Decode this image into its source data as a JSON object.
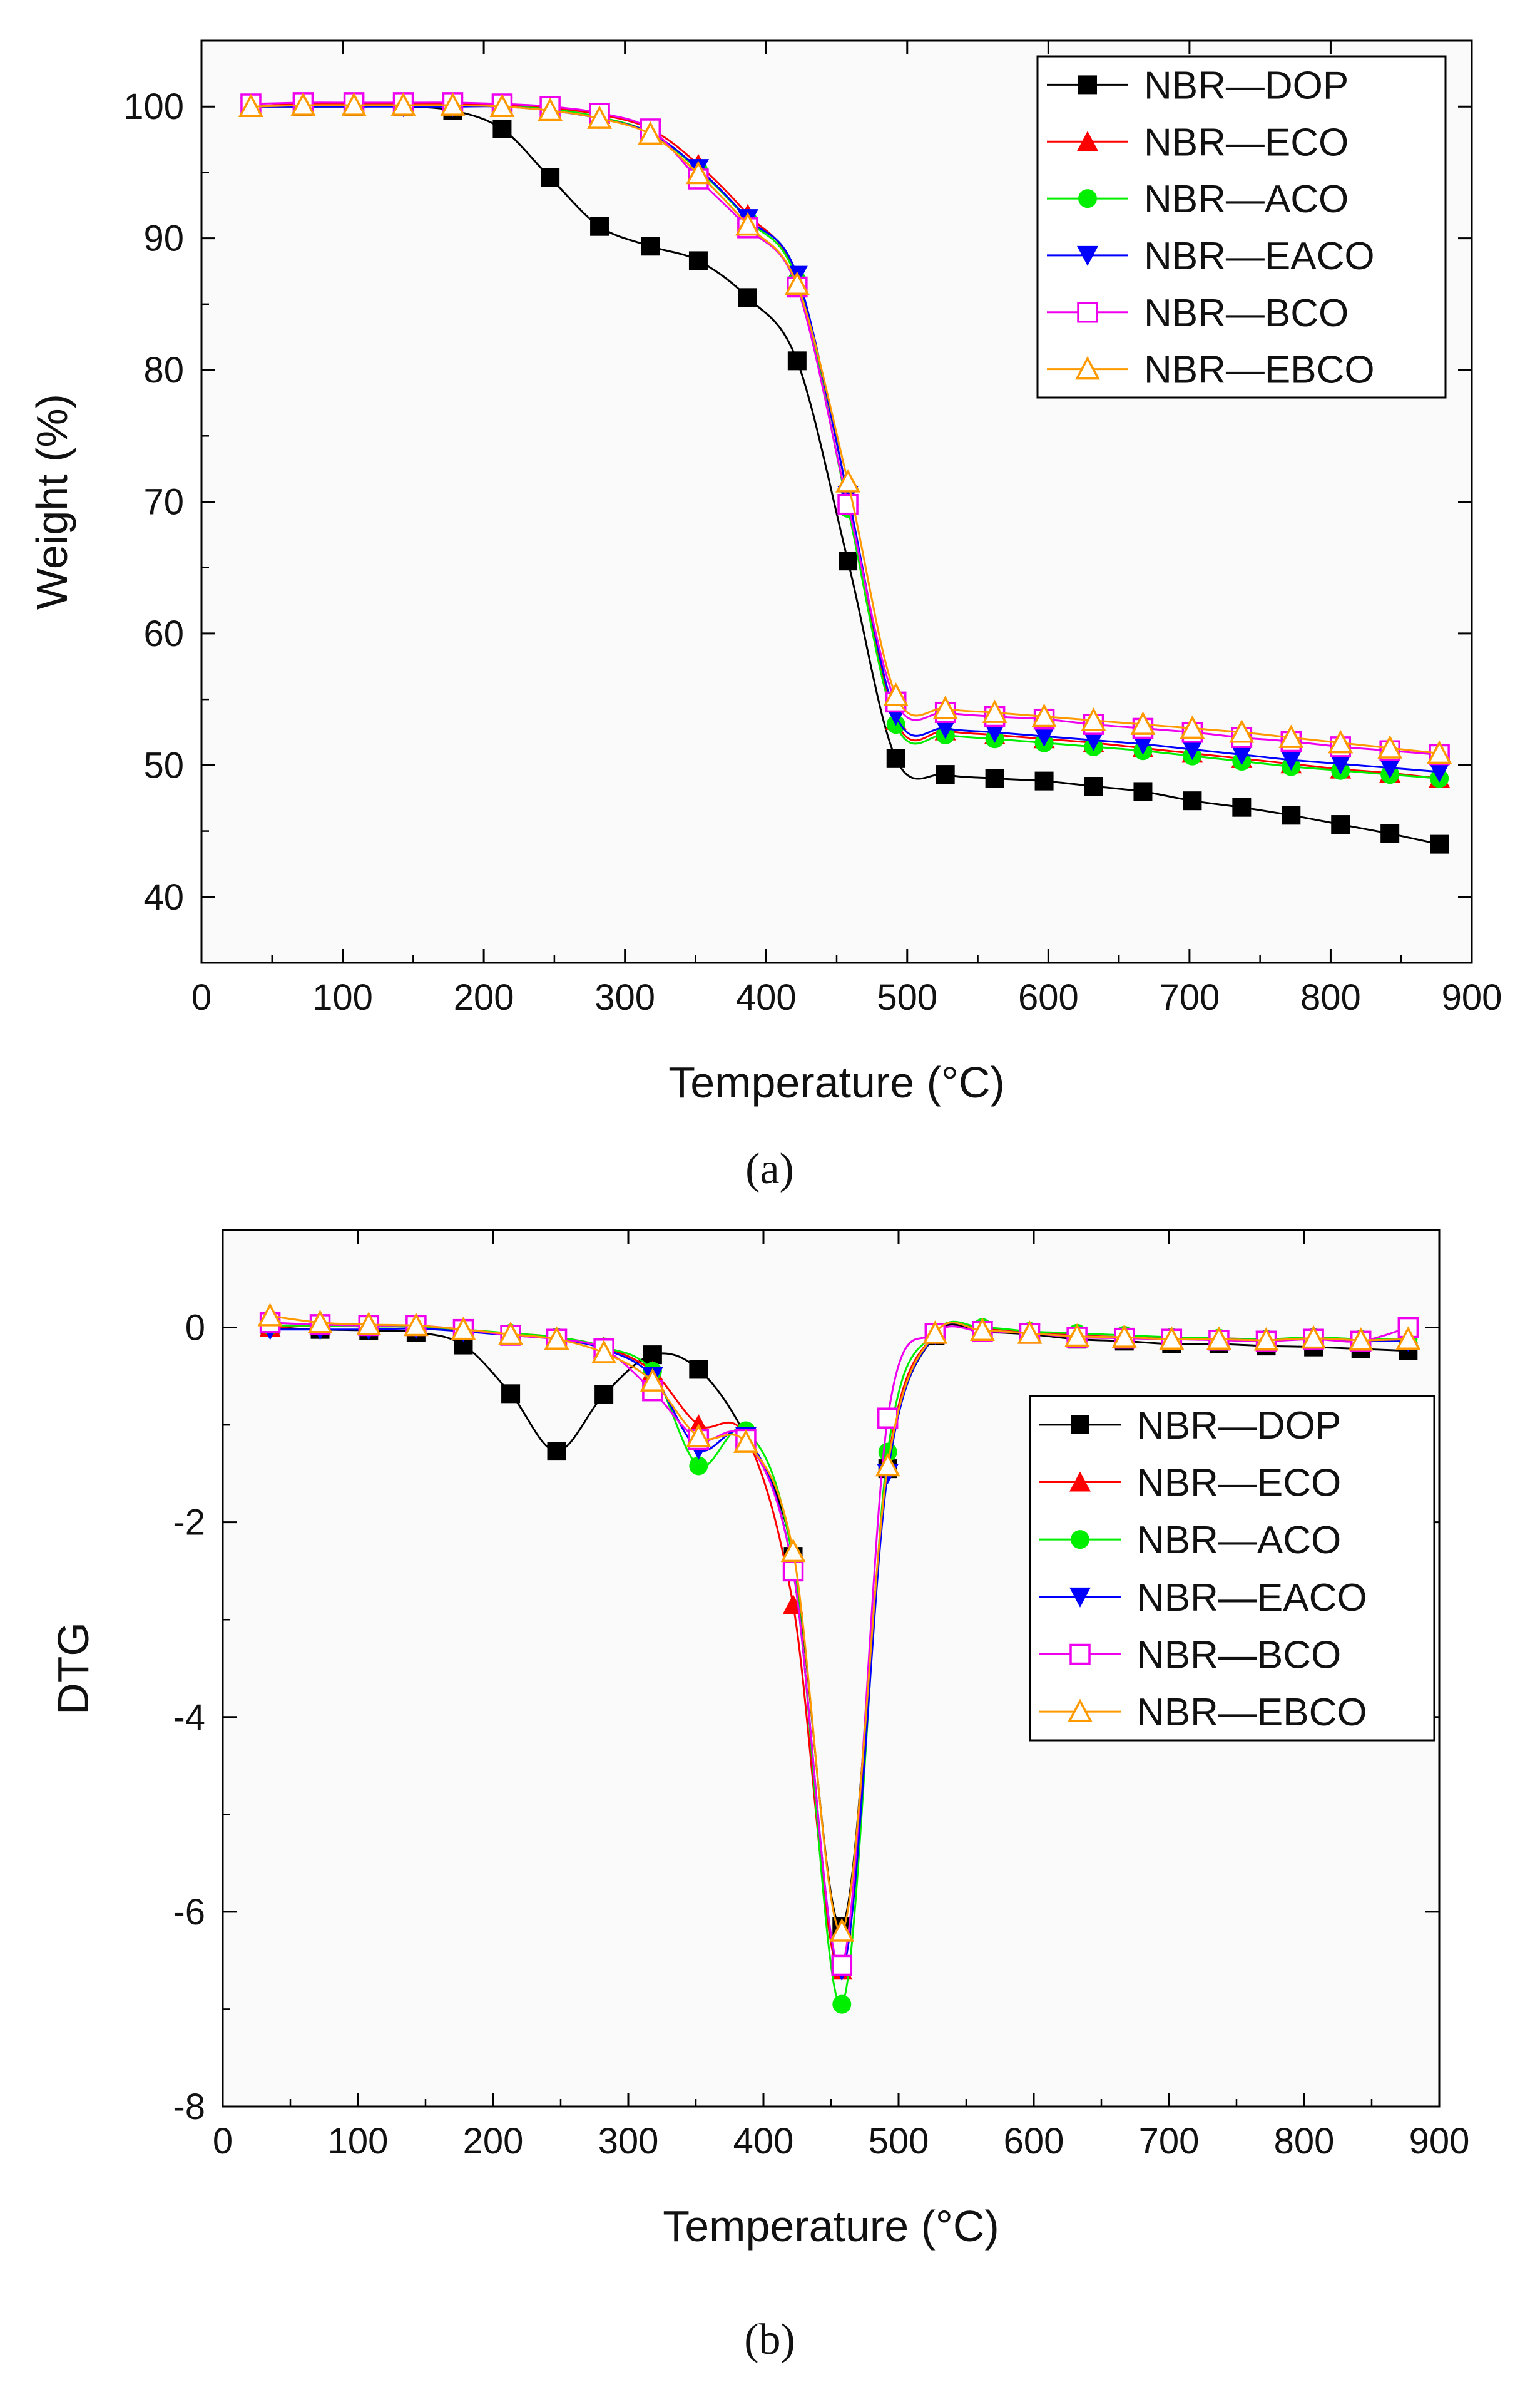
{
  "chart_data": [
    {
      "panel": "a",
      "type": "line",
      "caption": "(a)",
      "xlabel": "Temperature (°C)",
      "ylabel": "Weight (%)",
      "xlim": [
        0,
        900
      ],
      "ylim": [
        35,
        105
      ],
      "xticks": [
        0,
        100,
        200,
        300,
        400,
        500,
        600,
        700,
        800,
        900
      ],
      "yticks": [
        40,
        50,
        60,
        70,
        80,
        90,
        100
      ],
      "grid": false,
      "legend_position": "top-right",
      "series": [
        {
          "name": "NBR—DOP",
          "color": "#000000",
          "marker": "square-filled",
          "x": [
            35,
            72,
            108,
            143,
            178,
            213,
            247,
            282,
            318,
            352,
            387,
            422,
            458,
            492,
            527,
            562,
            597,
            632,
            667,
            702,
            737,
            772,
            807,
            842,
            877
          ],
          "y": [
            100,
            100,
            100,
            100,
            99.7,
            98.3,
            94.6,
            90.9,
            89.4,
            88.3,
            85.5,
            80.7,
            65.5,
            50.5,
            49.3,
            49.0,
            48.8,
            48.4,
            48.0,
            47.3,
            46.8,
            46.2,
            45.5,
            44.8,
            44.0
          ]
        },
        {
          "name": "NBR—ECO",
          "color": "#ff0000",
          "marker": "triangle-up-filled",
          "x": [
            35,
            72,
            108,
            143,
            178,
            213,
            247,
            282,
            318,
            352,
            387,
            422,
            458,
            492,
            527,
            562,
            597,
            632,
            667,
            702,
            737,
            772,
            807,
            842,
            877
          ],
          "y": [
            100,
            100.2,
            100.2,
            100.2,
            100.2,
            100.1,
            99.9,
            99.4,
            98.3,
            95.6,
            91.8,
            87.0,
            70.5,
            53.4,
            52.6,
            52.3,
            52.0,
            51.7,
            51.3,
            50.9,
            50.5,
            50.1,
            49.7,
            49.4,
            49.0
          ]
        },
        {
          "name": "NBR—ACO",
          "color": "#00ee00",
          "marker": "circle-filled",
          "x": [
            35,
            72,
            108,
            143,
            178,
            213,
            247,
            282,
            318,
            352,
            387,
            422,
            458,
            492,
            527,
            562,
            597,
            632,
            667,
            702,
            737,
            772,
            807,
            842,
            877
          ],
          "y": [
            100,
            100.1,
            100.1,
            100.1,
            100.1,
            100.0,
            99.8,
            99.2,
            98.0,
            95.2,
            91.4,
            86.8,
            69.5,
            53.1,
            52.3,
            52.0,
            51.7,
            51.4,
            51.1,
            50.7,
            50.3,
            49.9,
            49.6,
            49.3,
            49.0
          ]
        },
        {
          "name": "NBR—EACO",
          "color": "#0000ff",
          "marker": "triangle-down-filled",
          "x": [
            35,
            72,
            108,
            143,
            178,
            213,
            247,
            282,
            318,
            352,
            387,
            422,
            458,
            492,
            527,
            562,
            597,
            632,
            667,
            702,
            737,
            772,
            807,
            842,
            877
          ],
          "y": [
            100,
            100,
            100,
            100,
            100,
            100,
            99.7,
            99.1,
            98.0,
            95.3,
            91.5,
            87.2,
            70.5,
            53.8,
            52.8,
            52.5,
            52.2,
            51.9,
            51.6,
            51.2,
            50.8,
            50.4,
            50.1,
            49.8,
            49.5
          ]
        },
        {
          "name": "NBR—BCO",
          "color": "#ee00ee",
          "marker": "square-open",
          "x": [
            35,
            72,
            108,
            143,
            178,
            213,
            247,
            282,
            318,
            352,
            387,
            422,
            458,
            492,
            527,
            562,
            597,
            632,
            667,
            702,
            737,
            772,
            807,
            842,
            877
          ],
          "y": [
            100.2,
            100.3,
            100.3,
            100.3,
            100.3,
            100.2,
            100.0,
            99.5,
            98.3,
            94.5,
            90.8,
            86.3,
            69.8,
            54.8,
            54.0,
            53.7,
            53.5,
            53.1,
            52.8,
            52.5,
            52.1,
            51.8,
            51.4,
            51.1,
            50.8
          ]
        },
        {
          "name": "NBR—EBCO",
          "color": "#ff9900",
          "marker": "triangle-up-open",
          "x": [
            35,
            72,
            108,
            143,
            178,
            213,
            247,
            282,
            318,
            352,
            387,
            422,
            458,
            492,
            527,
            562,
            597,
            632,
            667,
            702,
            737,
            772,
            807,
            842,
            877
          ],
          "y": [
            100,
            100.1,
            100.1,
            100.1,
            100.1,
            100.0,
            99.7,
            99.1,
            97.9,
            94.9,
            91.0,
            86.5,
            71.5,
            55.3,
            54.3,
            54.0,
            53.7,
            53.4,
            53.1,
            52.8,
            52.5,
            52.1,
            51.7,
            51.3,
            50.9
          ]
        }
      ]
    },
    {
      "panel": "b",
      "type": "line",
      "caption": "(b)",
      "xlabel": "Temperature (°C)",
      "ylabel": "DTG",
      "xlim": [
        0,
        900
      ],
      "ylim": [
        -8,
        1
      ],
      "xticks": [
        0,
        100,
        200,
        300,
        400,
        500,
        600,
        700,
        800,
        900
      ],
      "yticks": [
        -8,
        -6,
        -4,
        -2,
        0
      ],
      "grid": false,
      "legend_position": "right-middle",
      "series": [
        {
          "name": "NBR—DOP",
          "color": "#000000",
          "marker": "square-filled",
          "x": [
            35,
            72,
            108,
            143,
            178,
            213,
            247,
            282,
            318,
            352,
            387,
            422,
            458,
            492,
            527,
            562,
            597,
            632,
            667,
            702,
            737,
            772,
            807,
            842,
            877
          ],
          "y": [
            0,
            -0.02,
            -0.03,
            -0.05,
            -0.18,
            -0.68,
            -1.27,
            -0.69,
            -0.28,
            -0.43,
            -1.12,
            -2.35,
            -6.15,
            -1.45,
            -0.08,
            -0.05,
            -0.07,
            -0.12,
            -0.14,
            -0.17,
            -0.17,
            -0.19,
            -0.2,
            -0.22,
            -0.24
          ]
        },
        {
          "name": "NBR—ECO",
          "color": "#ff0000",
          "marker": "triangle-up-filled",
          "x": [
            35,
            72,
            108,
            143,
            178,
            213,
            247,
            282,
            318,
            352,
            387,
            422,
            458,
            492,
            527,
            562,
            597,
            632,
            667,
            702,
            737,
            772,
            807,
            842,
            877
          ],
          "y": [
            0,
            0.02,
            0.01,
            0.01,
            -0.03,
            -0.06,
            -0.1,
            -0.2,
            -0.45,
            -1.0,
            -1.12,
            -2.85,
            -6.6,
            -1.4,
            -0.06,
            -0.02,
            -0.05,
            -0.08,
            -0.1,
            -0.11,
            -0.11,
            -0.12,
            -0.11,
            -0.13,
            -0.13
          ]
        },
        {
          "name": "NBR—ACO",
          "color": "#00ee00",
          "marker": "circle-filled",
          "x": [
            35,
            72,
            108,
            143,
            178,
            213,
            247,
            282,
            318,
            352,
            387,
            422,
            458,
            492,
            527,
            562,
            597,
            632,
            667,
            702,
            737,
            772,
            807,
            842,
            877
          ],
          "y": [
            0.02,
            0.02,
            0.01,
            0.01,
            -0.02,
            -0.06,
            -0.1,
            -0.2,
            -0.45,
            -1.42,
            -1.06,
            -2.4,
            -6.95,
            -1.28,
            -0.05,
            0.0,
            -0.04,
            -0.06,
            -0.08,
            -0.1,
            -0.11,
            -0.12,
            -0.1,
            -0.12,
            -0.12
          ]
        },
        {
          "name": "NBR—EACO",
          "color": "#0000ff",
          "marker": "triangle-down-filled",
          "x": [
            35,
            72,
            108,
            143,
            178,
            213,
            247,
            282,
            318,
            352,
            387,
            422,
            458,
            492,
            527,
            562,
            597,
            632,
            667,
            702,
            737,
            772,
            807,
            842,
            877
          ],
          "y": [
            -0.02,
            -0.02,
            -0.02,
            -0.01,
            -0.04,
            -0.08,
            -0.12,
            -0.22,
            -0.5,
            -1.25,
            -1.12,
            -2.5,
            -6.6,
            -1.5,
            -0.07,
            -0.03,
            -0.06,
            -0.09,
            -0.1,
            -0.12,
            -0.12,
            -0.13,
            -0.12,
            -0.14,
            -0.14
          ]
        },
        {
          "name": "NBR—BCO",
          "color": "#ee00ee",
          "marker": "square-open",
          "x": [
            35,
            72,
            108,
            143,
            178,
            213,
            247,
            282,
            318,
            352,
            387,
            422,
            458,
            492,
            527,
            562,
            597,
            632,
            667,
            702,
            737,
            772,
            807,
            842,
            877
          ],
          "y": [
            0.05,
            0.03,
            0.02,
            0.02,
            -0.02,
            -0.08,
            -0.12,
            -0.22,
            -0.65,
            -1.15,
            -1.15,
            -2.5,
            -6.55,
            -0.93,
            -0.06,
            -0.04,
            -0.06,
            -0.1,
            -0.11,
            -0.12,
            -0.13,
            -0.14,
            -0.12,
            -0.14,
            0.0
          ]
        },
        {
          "name": "NBR—EBCO",
          "color": "#ff9900",
          "marker": "triangle-up-open",
          "x": [
            35,
            72,
            108,
            143,
            178,
            213,
            247,
            282,
            318,
            352,
            387,
            422,
            458,
            492,
            527,
            562,
            597,
            632,
            667,
            702,
            737,
            772,
            807,
            842,
            877
          ],
          "y": [
            0.12,
            0.05,
            0.03,
            0.02,
            -0.02,
            -0.07,
            -0.12,
            -0.26,
            -0.55,
            -1.12,
            -1.18,
            -2.3,
            -6.2,
            -1.42,
            -0.06,
            -0.03,
            -0.06,
            -0.09,
            -0.1,
            -0.12,
            -0.12,
            -0.13,
            -0.11,
            -0.13,
            -0.12
          ]
        }
      ]
    }
  ]
}
